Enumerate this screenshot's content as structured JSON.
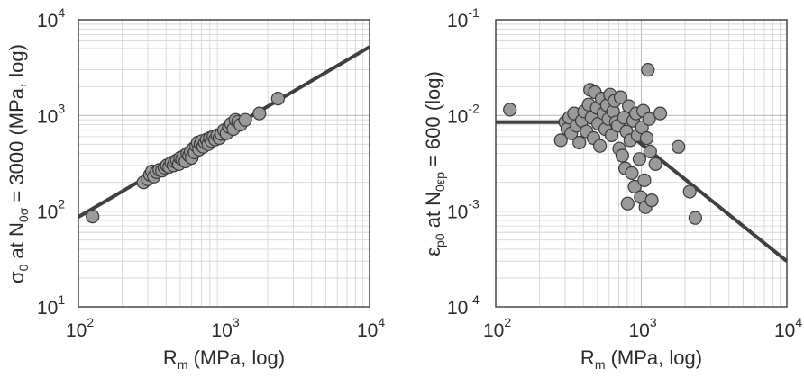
{
  "chart_data": [
    {
      "type": "scatter",
      "xscale": "log",
      "yscale": "log",
      "xlim": [
        100,
        10000
      ],
      "ylim": [
        10,
        10000
      ],
      "x_ticks": [
        {
          "base": "10",
          "exp": "2"
        },
        {
          "base": "10",
          "exp": "3"
        },
        {
          "base": "10",
          "exp": "4"
        }
      ],
      "y_ticks": [
        {
          "base": "10",
          "exp": "1"
        },
        {
          "base": "10",
          "exp": "2"
        },
        {
          "base": "10",
          "exp": "3"
        },
        {
          "base": "10",
          "exp": "4"
        }
      ],
      "xlabel": {
        "main": "R",
        "sub": "m",
        "rest": " (MPa, log)"
      },
      "ylabel": {
        "sym": "σ",
        "sub0": "0",
        "mid": " at N",
        "sub1": "0σ",
        "rest": " = 3000 (MPa, log)"
      },
      "grid": true,
      "fit_line": {
        "x": [
          100,
          10000
        ],
        "y": [
          87,
          5200
        ]
      },
      "points": [
        {
          "x": 125,
          "y": 88
        },
        {
          "x": 280,
          "y": 200
        },
        {
          "x": 300,
          "y": 215
        },
        {
          "x": 310,
          "y": 240
        },
        {
          "x": 320,
          "y": 260
        },
        {
          "x": 330,
          "y": 230
        },
        {
          "x": 345,
          "y": 255
        },
        {
          "x": 360,
          "y": 270
        },
        {
          "x": 375,
          "y": 265
        },
        {
          "x": 390,
          "y": 285
        },
        {
          "x": 405,
          "y": 300
        },
        {
          "x": 420,
          "y": 290
        },
        {
          "x": 435,
          "y": 320
        },
        {
          "x": 450,
          "y": 300
        },
        {
          "x": 460,
          "y": 330
        },
        {
          "x": 475,
          "y": 340
        },
        {
          "x": 490,
          "y": 310
        },
        {
          "x": 500,
          "y": 360
        },
        {
          "x": 515,
          "y": 350
        },
        {
          "x": 530,
          "y": 375
        },
        {
          "x": 545,
          "y": 330
        },
        {
          "x": 560,
          "y": 400
        },
        {
          "x": 575,
          "y": 380
        },
        {
          "x": 590,
          "y": 420
        },
        {
          "x": 600,
          "y": 360
        },
        {
          "x": 615,
          "y": 450
        },
        {
          "x": 630,
          "y": 410
        },
        {
          "x": 645,
          "y": 480
        },
        {
          "x": 660,
          "y": 520
        },
        {
          "x": 675,
          "y": 440
        },
        {
          "x": 690,
          "y": 500
        },
        {
          "x": 705,
          "y": 540
        },
        {
          "x": 720,
          "y": 470
        },
        {
          "x": 740,
          "y": 520
        },
        {
          "x": 760,
          "y": 560
        },
        {
          "x": 780,
          "y": 500
        },
        {
          "x": 800,
          "y": 580
        },
        {
          "x": 820,
          "y": 540
        },
        {
          "x": 845,
          "y": 600
        },
        {
          "x": 870,
          "y": 560
        },
        {
          "x": 900,
          "y": 620
        },
        {
          "x": 930,
          "y": 580
        },
        {
          "x": 960,
          "y": 640
        },
        {
          "x": 1000,
          "y": 700
        },
        {
          "x": 1040,
          "y": 650
        },
        {
          "x": 1080,
          "y": 760
        },
        {
          "x": 1120,
          "y": 820
        },
        {
          "x": 1160,
          "y": 720
        },
        {
          "x": 1200,
          "y": 900
        },
        {
          "x": 1250,
          "y": 860
        },
        {
          "x": 1300,
          "y": 800
        },
        {
          "x": 1400,
          "y": 900
        },
        {
          "x": 1750,
          "y": 1050
        },
        {
          "x": 2350,
          "y": 1500
        }
      ]
    },
    {
      "type": "scatter",
      "xscale": "log",
      "yscale": "log",
      "xlim": [
        100,
        10000
      ],
      "ylim": [
        0.0001,
        0.1
      ],
      "x_ticks": [
        {
          "base": "10",
          "exp": "2"
        },
        {
          "base": "10",
          "exp": "3"
        },
        {
          "base": "10",
          "exp": "4"
        }
      ],
      "y_ticks": [
        {
          "base": "10",
          "exp": "-4"
        },
        {
          "base": "10",
          "exp": "-3"
        },
        {
          "base": "10",
          "exp": "-2"
        },
        {
          "base": "10",
          "exp": "-1"
        }
      ],
      "xlabel": {
        "main": "R",
        "sub": "m",
        "rest": " (MPa, log)"
      },
      "ylabel": {
        "sym": "ε",
        "sub0": "p0",
        "mid": " at N",
        "sub1": "0εp",
        "rest": " = 600 (log)"
      },
      "grid": true,
      "fit_line": {
        "x": [
          100,
          650,
          10000
        ],
        "y": [
          0.0085,
          0.0085,
          0.0003
        ]
      },
      "points": [
        {
          "x": 125,
          "y": 0.0115
        },
        {
          "x": 280,
          "y": 0.0055
        },
        {
          "x": 300,
          "y": 0.0085
        },
        {
          "x": 310,
          "y": 0.0072
        },
        {
          "x": 320,
          "y": 0.0095
        },
        {
          "x": 330,
          "y": 0.0065
        },
        {
          "x": 345,
          "y": 0.0105
        },
        {
          "x": 360,
          "y": 0.0078
        },
        {
          "x": 375,
          "y": 0.0052
        },
        {
          "x": 390,
          "y": 0.0088
        },
        {
          "x": 405,
          "y": 0.011
        },
        {
          "x": 420,
          "y": 0.0068
        },
        {
          "x": 435,
          "y": 0.013
        },
        {
          "x": 445,
          "y": 0.0185
        },
        {
          "x": 455,
          "y": 0.0095
        },
        {
          "x": 470,
          "y": 0.0058
        },
        {
          "x": 480,
          "y": 0.0175
        },
        {
          "x": 495,
          "y": 0.012
        },
        {
          "x": 505,
          "y": 0.0082
        },
        {
          "x": 520,
          "y": 0.0048
        },
        {
          "x": 535,
          "y": 0.015
        },
        {
          "x": 550,
          "y": 0.0105
        },
        {
          "x": 565,
          "y": 0.0072
        },
        {
          "x": 580,
          "y": 0.0128
        },
        {
          "x": 595,
          "y": 0.0092
        },
        {
          "x": 610,
          "y": 0.0165
        },
        {
          "x": 625,
          "y": 0.0062
        },
        {
          "x": 640,
          "y": 0.011
        },
        {
          "x": 655,
          "y": 0.0142
        },
        {
          "x": 670,
          "y": 0.0085
        },
        {
          "x": 690,
          "y": 0.0078
        },
        {
          "x": 705,
          "y": 0.0045
        },
        {
          "x": 720,
          "y": 0.0155
        },
        {
          "x": 740,
          "y": 0.0038
        },
        {
          "x": 760,
          "y": 0.0095
        },
        {
          "x": 775,
          "y": 0.0028
        },
        {
          "x": 790,
          "y": 0.0068
        },
        {
          "x": 805,
          "y": 0.0012
        },
        {
          "x": 820,
          "y": 0.0125
        },
        {
          "x": 840,
          "y": 0.0055
        },
        {
          "x": 860,
          "y": 0.0025
        },
        {
          "x": 880,
          "y": 0.0088
        },
        {
          "x": 900,
          "y": 0.0018
        },
        {
          "x": 920,
          "y": 0.0105
        },
        {
          "x": 945,
          "y": 0.0062
        },
        {
          "x": 970,
          "y": 0.0035
        },
        {
          "x": 990,
          "y": 0.0014
        },
        {
          "x": 1010,
          "y": 0.0075
        },
        {
          "x": 1030,
          "y": 0.0112
        },
        {
          "x": 1050,
          "y": 0.0021
        },
        {
          "x": 1070,
          "y": 0.0011
        },
        {
          "x": 1090,
          "y": 0.0058
        },
        {
          "x": 1110,
          "y": 0.03
        },
        {
          "x": 1130,
          "y": 0.0092
        },
        {
          "x": 1150,
          "y": 0.0042
        },
        {
          "x": 1180,
          "y": 0.0013
        },
        {
          "x": 1250,
          "y": 0.0031
        },
        {
          "x": 1350,
          "y": 0.0105
        },
        {
          "x": 1800,
          "y": 0.0047
        },
        {
          "x": 2150,
          "y": 0.0016
        },
        {
          "x": 2350,
          "y": 0.00085
        }
      ]
    }
  ]
}
